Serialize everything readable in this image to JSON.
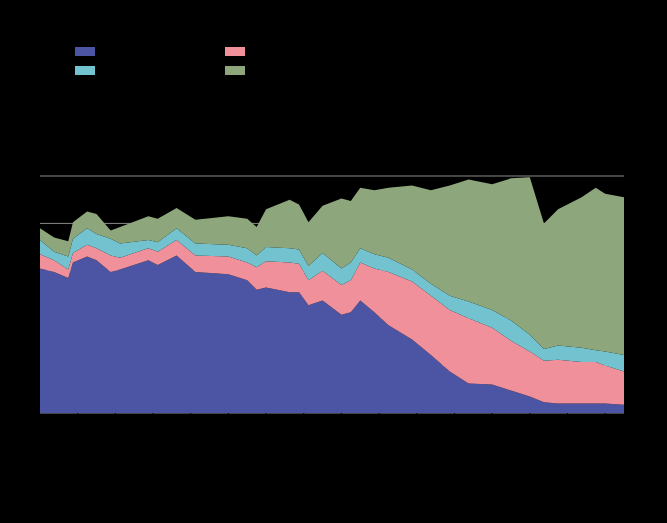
{
  "chart_data": {
    "type": "area",
    "stacked": true,
    "grid": true,
    "legend": "top-left",
    "tick_labels": false,
    "x": [
      0,
      1.5,
      3,
      3.5,
      5,
      6,
      7.5,
      8.5,
      11.5,
      12.5,
      14.5,
      16.5,
      20,
      22,
      23,
      24,
      26.5,
      27.5,
      28.5,
      30,
      32,
      33,
      34,
      35.5,
      37,
      39.5,
      41.5,
      43.5,
      45.5,
      48,
      50,
      52,
      53.5,
      55,
      57.5,
      59,
      60,
      62
    ],
    "xlim": [
      0,
      62
    ],
    "xticks": [
      4,
      8,
      12,
      16,
      20,
      24,
      28,
      32,
      36,
      40,
      44,
      48,
      52,
      56,
      60
    ],
    "ylim": [
      0,
      100
    ],
    "yticks": [
      0,
      20,
      40,
      60,
      80,
      100
    ],
    "series": [
      {
        "color": "#4b55a3",
        "values": [
          61,
          59.5,
          57,
          63.5,
          66,
          64.5,
          59.5,
          60.5,
          64.5,
          62.5,
          66.5,
          59.5,
          58.5,
          56,
          52,
          53,
          51,
          51,
          45.5,
          47.5,
          41.5,
          42.5,
          47.5,
          42.5,
          37,
          31,
          24.5,
          17.5,
          12.5,
          12,
          9.5,
          7,
          4.5,
          4,
          4,
          4,
          4,
          3.5
        ]
      },
      {
        "color": "#f0909a",
        "values": [
          6,
          5,
          3.5,
          4,
          5,
          5,
          7,
          5,
          5,
          5.5,
          6.5,
          7,
          7.5,
          7.5,
          9.5,
          11,
          12.5,
          12,
          10.5,
          12.5,
          12.5,
          13.5,
          16,
          18.5,
          22.5,
          24.5,
          25,
          26,
          27.5,
          24,
          21,
          19,
          17.5,
          18.5,
          17.5,
          17.5,
          16,
          14
        ]
      },
      {
        "color": "#72c3cf",
        "values": [
          6,
          3.5,
          5.5,
          6,
          7,
          6,
          7,
          6,
          3.5,
          4,
          5,
          5,
          5,
          6,
          5,
          6,
          6,
          6,
          6,
          7.5,
          7,
          7.5,
          6,
          6,
          6,
          5,
          5,
          6,
          7,
          7.5,
          8.5,
          7,
          5,
          6,
          6,
          5,
          6,
          7
        ]
      },
      {
        "color": "#8da67c",
        "values": [
          5,
          6,
          6.5,
          7,
          7,
          8.5,
          3.5,
          7,
          10,
          10,
          8.5,
          10,
          12,
          12.5,
          12,
          16,
          20.5,
          19,
          18.5,
          20,
          29.5,
          26,
          25.5,
          27,
          29.5,
          35.5,
          39.5,
          46.5,
          51.5,
          53,
          60,
          66.5,
          53,
          57.5,
          63.5,
          68.5,
          66.5,
          66.5
        ]
      }
    ]
  }
}
